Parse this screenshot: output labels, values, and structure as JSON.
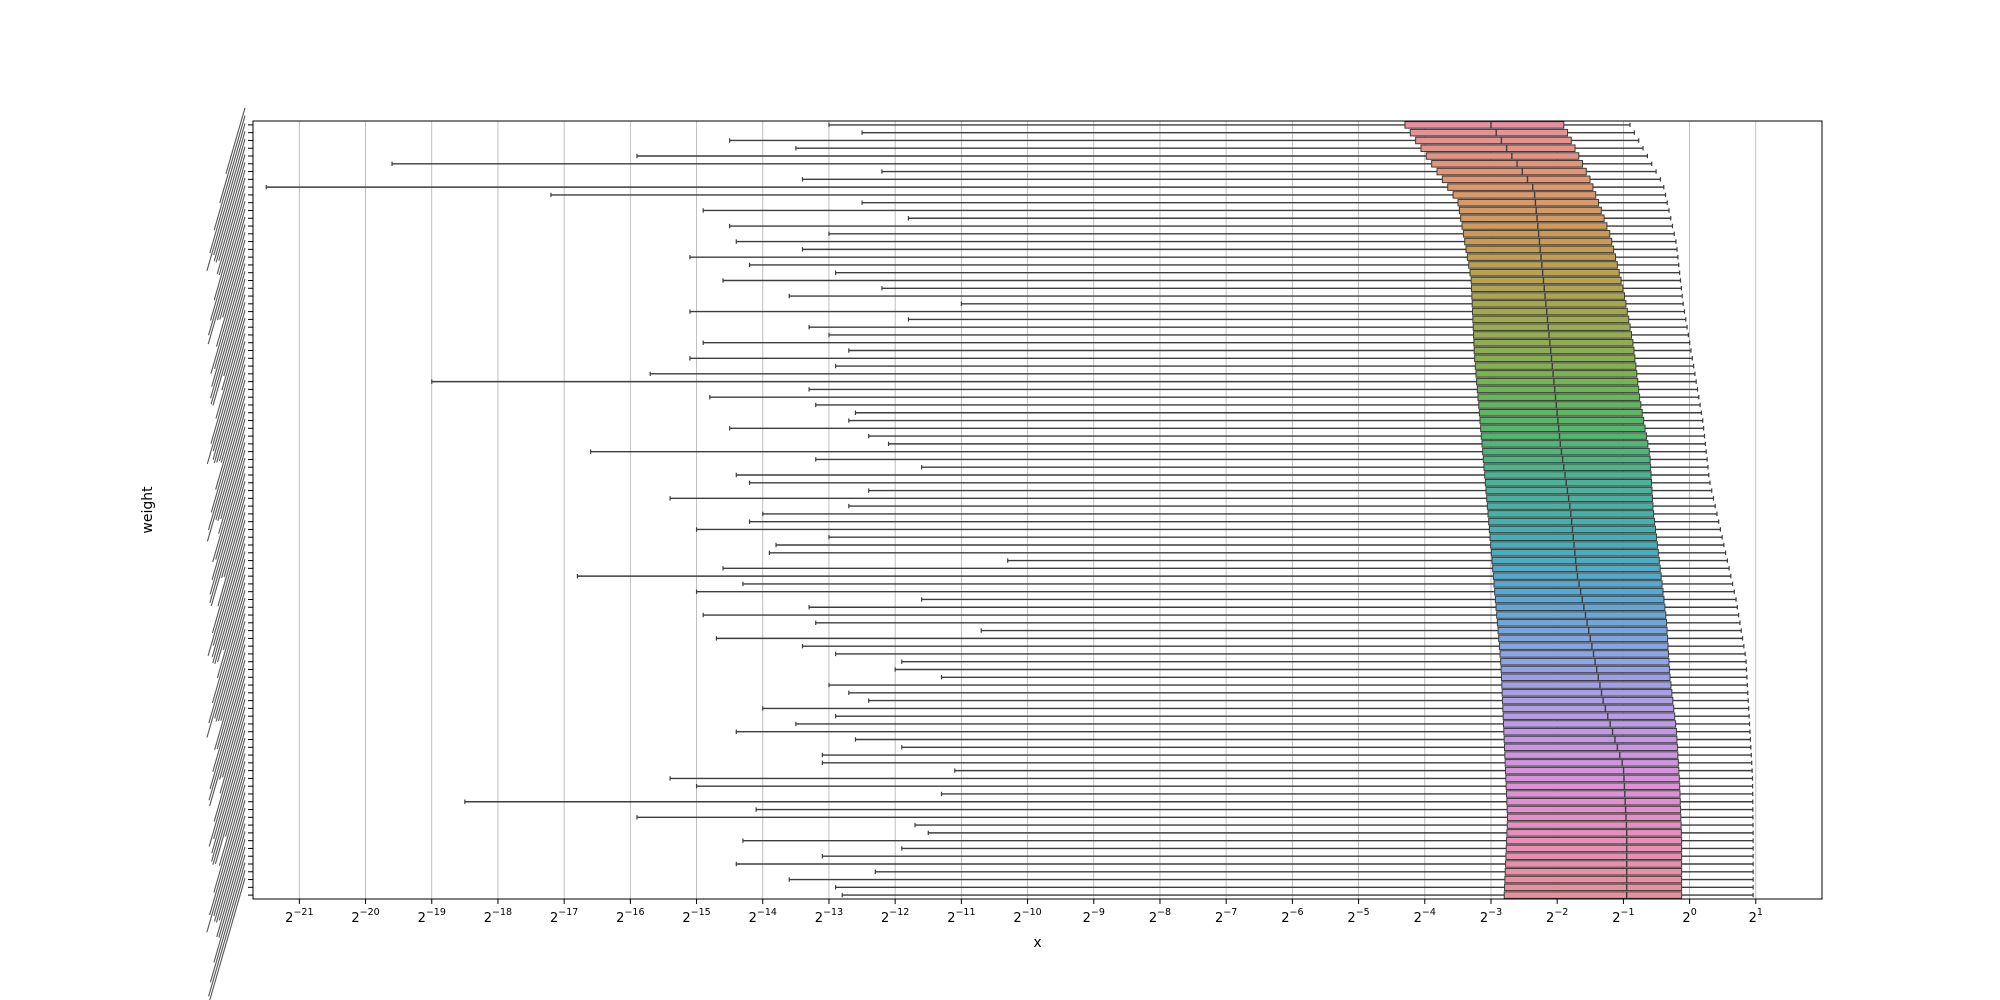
{
  "chart_data": {
    "type": "box",
    "orientation": "horizontal",
    "xlabel": "x",
    "ylabel": "weight",
    "x_scale": "log2",
    "x_ticks_exponent": [
      -21,
      -20,
      -19,
      -18,
      -17,
      -16,
      -15,
      -14,
      -13,
      -12,
      -11,
      -10,
      -9,
      -8,
      -7,
      -6,
      -5,
      -4,
      -3,
      -2,
      -1,
      0,
      1
    ],
    "xlim_exponent": [
      -21.7,
      2.0
    ],
    "grid": "x",
    "legend": "none",
    "n_categories": 100,
    "palette": [
      "#e8909b",
      "#e3966c",
      "#c89b53",
      "#a9a74c",
      "#86b04e",
      "#55b862",
      "#47b595",
      "#46aeb6",
      "#58a8d6",
      "#8ea4e6",
      "#b89ce8",
      "#d991de",
      "#ea8dbb",
      "#e8909b"
    ],
    "boxes_log2": {
      "q1": [
        -4.3,
        -3.5,
        -3.3,
        -3.25,
        -3.15,
        -3.05,
        -2.95,
        -2.85,
        -2.8,
        -2.75,
        -2.8
      ],
      "median": [
        -3.0,
        -2.35,
        -2.25,
        -2.15,
        -2.05,
        -1.95,
        -1.8,
        -1.7,
        -1.5,
        -1.3,
        -1.0,
        -0.95,
        -0.95
      ],
      "q3": [
        -1.9,
        -1.5,
        -1.2,
        -1.0,
        -0.85,
        -0.75,
        -0.6,
        -0.55,
        -0.45,
        -0.35,
        -0.3,
        -0.2,
        -0.15,
        -0.12,
        -0.12
      ],
      "whisker_high": [
        -0.9,
        -0.4,
        -0.2,
        -0.1,
        0.05,
        0.2,
        0.3,
        0.5,
        0.7,
        0.85,
        0.9,
        0.95,
        0.96,
        0.96
      ],
      "whisker_low": [
        -13.0,
        -12.5,
        -14.5,
        -13.5,
        -15.9,
        -19.6,
        -12.2,
        -13.4,
        -21.5,
        -17.2,
        -12.5,
        -14.9,
        -11.8,
        -14.5,
        -13.0,
        -14.4,
        -13.4,
        -15.1,
        -14.2,
        -12.9,
        -14.6,
        -12.2,
        -13.6,
        -11.0,
        -15.1,
        -11.8,
        -13.3,
        -13.0,
        -14.9,
        -12.7,
        -15.1,
        -12.9,
        -15.7,
        -19.0,
        -13.3,
        -14.8,
        -13.2,
        -12.6,
        -12.7,
        -14.5,
        -12.4,
        -12.1,
        -16.6,
        -13.2,
        -11.6,
        -14.4,
        -14.2,
        -12.4,
        -15.4,
        -12.7,
        -14.0,
        -14.2,
        -15.0,
        -13.0,
        -13.8,
        -13.9,
        -10.3,
        -14.6,
        -16.8,
        -14.3,
        -15.0,
        -11.6,
        -13.3,
        -14.9,
        -13.2,
        -10.7,
        -14.7,
        -13.4,
        -12.9,
        -11.9,
        -12.0,
        -11.3,
        -13.0,
        -12.7,
        -12.4,
        -14.0,
        -12.9,
        -13.5,
        -14.4,
        -12.6,
        -11.9,
        -13.1,
        -13.1,
        -11.1,
        -15.4,
        -15.0,
        -11.3,
        -18.5,
        -14.1,
        -15.9,
        -11.7,
        -11.5,
        -14.3,
        -11.9,
        -13.1,
        -14.4,
        -12.3,
        -13.6,
        -12.9,
        -12.8
      ]
    }
  }
}
